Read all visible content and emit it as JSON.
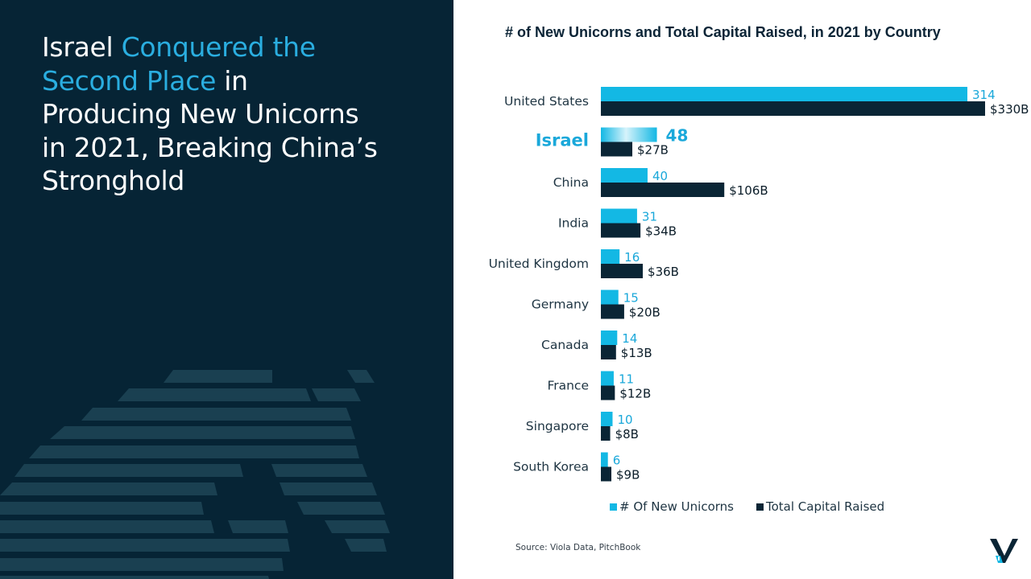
{
  "headline": {
    "part1": "Israel ",
    "accent": "Conquered the Second Place",
    "part2": " in Producing New Unicorns in 2021, Breaking China’s Stronghold"
  },
  "colors": {
    "left_bg": "#062435",
    "accent": "#2aaee0",
    "unicorn_bar": "#13b8e4",
    "capital_bar": "#0a2535",
    "highlight_text": "#1aa8da"
  },
  "chart_data": {
    "type": "bar",
    "orientation": "horizontal",
    "title": "# of New Unicorns and Total Capital Raised, in 2021 by Country",
    "categories": [
      "United States",
      "Israel",
      "China",
      "India",
      "United Kingdom",
      "Germany",
      "Canada",
      "France",
      "Singapore",
      "South Korea"
    ],
    "highlight_category": "Israel",
    "series": [
      {
        "name": "# Of New Unicorns",
        "values": [
          314,
          48,
          40,
          31,
          16,
          15,
          14,
          11,
          10,
          6
        ],
        "labels": [
          "314",
          "48",
          "40",
          "31",
          "16",
          "15",
          "14",
          "11",
          "10",
          "6"
        ]
      },
      {
        "name": "Total Capital Raised",
        "values": [
          330,
          27,
          106,
          34,
          36,
          20,
          13,
          12,
          8,
          9
        ],
        "labels": [
          "$330B",
          "$27B",
          "$106B",
          "$34B",
          "$36B",
          "$20B",
          "$13B",
          "$12B",
          "$8B",
          "$9B"
        ]
      }
    ],
    "legend_position": "bottom"
  },
  "source": "Source: Viola Data, PitchBook",
  "logo_icon": "viola-v-logo-icon"
}
